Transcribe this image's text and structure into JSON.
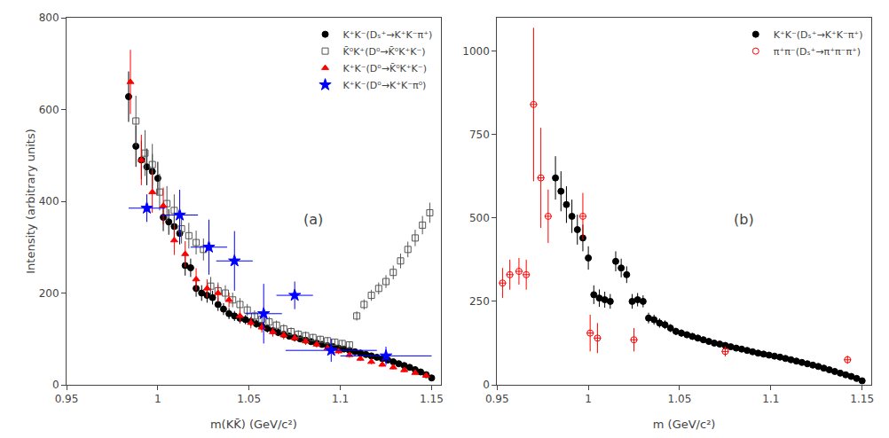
{
  "chart_data": [
    {
      "type": "scatter",
      "title": "(a)",
      "x_label": "m(KK̄) (GeV/c²)",
      "y_label": "Intensity (arbitrary units)",
      "xlim": [
        0.95,
        1.155
      ],
      "xticks": [
        0.95,
        1,
        1.05,
        1.1,
        1.15
      ],
      "ylim": [
        0,
        800
      ],
      "yticks": [
        0,
        200,
        400,
        600,
        800
      ],
      "grid": false,
      "legend": "upper right",
      "series": [
        {
          "name": "K⁺K⁻(Dₛ⁺→K⁺K⁻π⁺)",
          "color": "black",
          "marker": "circle",
          "x": [
            0.984,
            0.988,
            0.991,
            0.994,
            0.997,
            1.0,
            1.003,
            1.006,
            1.009,
            1.012,
            1.015,
            1.018,
            1.021,
            1.024,
            1.027,
            1.03,
            1.033,
            1.036,
            1.039,
            1.042,
            1.045,
            1.048,
            1.051,
            1.054,
            1.057,
            1.06,
            1.063,
            1.066,
            1.069,
            1.072,
            1.075,
            1.078,
            1.081,
            1.084,
            1.087,
            1.09,
            1.093,
            1.096,
            1.099,
            1.102,
            1.105,
            1.108,
            1.111,
            1.114,
            1.117,
            1.12,
            1.123,
            1.126,
            1.129,
            1.132,
            1.135,
            1.138,
            1.141,
            1.144,
            1.147,
            1.15
          ],
          "values": [
            628,
            520,
            490,
            475,
            465,
            450,
            365,
            355,
            345,
            330,
            260,
            255,
            210,
            200,
            195,
            190,
            175,
            165,
            155,
            150,
            145,
            142,
            138,
            133,
            128,
            123,
            118,
            114,
            110,
            106,
            103,
            100,
            97,
            94,
            91,
            88,
            85,
            83,
            80,
            78,
            75,
            72,
            69,
            66,
            63,
            60,
            57,
            54,
            50,
            46,
            42,
            38,
            33,
            28,
            22,
            15
          ],
          "yerr": [
            55,
            45,
            42,
            40,
            38,
            36,
            30,
            28,
            26,
            24,
            22,
            20,
            18,
            17,
            16,
            15,
            14,
            13,
            12,
            11,
            11,
            10,
            10,
            9,
            9,
            9,
            8,
            8,
            8,
            7,
            7,
            7,
            7,
            6,
            6,
            6,
            6,
            5,
            5,
            5,
            5,
            5,
            5,
            4,
            4,
            4,
            4,
            4,
            4,
            3,
            3,
            3,
            3,
            3,
            3,
            2
          ]
        },
        {
          "name": "K̄⁰K⁺(D⁰→K̄⁰K⁺K⁻)",
          "color": "#555555",
          "marker": "square-open",
          "x": [
            0.988,
            0.993,
            0.997,
            1.001,
            1.005,
            1.009,
            1.013,
            1.017,
            1.021,
            1.025,
            1.029,
            1.033,
            1.037,
            1.041,
            1.045,
            1.049,
            1.053,
            1.057,
            1.061,
            1.065,
            1.069,
            1.073,
            1.077,
            1.081,
            1.085,
            1.089,
            1.093,
            1.097,
            1.101,
            1.105,
            1.109,
            1.113,
            1.117,
            1.121,
            1.125,
            1.129,
            1.133,
            1.137,
            1.141,
            1.145,
            1.149
          ],
          "values": [
            575,
            505,
            480,
            420,
            395,
            380,
            340,
            325,
            310,
            295,
            215,
            205,
            200,
            185,
            175,
            163,
            150,
            143,
            137,
            130,
            122,
            116,
            110,
            107,
            103,
            99,
            96,
            93,
            90,
            87,
            150,
            175,
            195,
            210,
            225,
            245,
            270,
            295,
            320,
            348,
            375
          ],
          "yerr": [
            55,
            50,
            45,
            40,
            38,
            35,
            32,
            28,
            26,
            24,
            20,
            18,
            17,
            16,
            14,
            13,
            12,
            11,
            11,
            10,
            10,
            9,
            9,
            9,
            8,
            8,
            8,
            7,
            7,
            7,
            10,
            11,
            12,
            13,
            14,
            15,
            16,
            17,
            18,
            20,
            22
          ]
        },
        {
          "name": "K⁺K⁻(D⁰→K̄⁰K⁺K⁻)",
          "color": "red",
          "marker": "triangle-up",
          "x": [
            0.985,
            0.991,
            0.997,
            1.003,
            1.009,
            1.015,
            1.021,
            1.027,
            1.033,
            1.039,
            1.045,
            1.051,
            1.057,
            1.063,
            1.069,
            1.075,
            1.081,
            1.087,
            1.093,
            1.099,
            1.105,
            1.111,
            1.117,
            1.123,
            1.129,
            1.135,
            1.141,
            1.147
          ],
          "values": [
            660,
            490,
            420,
            390,
            315,
            285,
            230,
            210,
            200,
            185,
            150,
            135,
            125,
            115,
            108,
            102,
            95,
            88,
            80,
            73,
            65,
            57,
            50,
            44,
            38,
            32,
            26,
            20
          ],
          "yerr": [
            70,
            55,
            45,
            40,
            32,
            28,
            24,
            20,
            18,
            16,
            14,
            12,
            11,
            10,
            9,
            8,
            8,
            7,
            7,
            6,
            6,
            5,
            5,
            4,
            4,
            4,
            3,
            3
          ]
        },
        {
          "name": "K⁺K⁻(D⁰→K⁺K⁻π⁰)",
          "color": "blue",
          "marker": "star",
          "x": [
            0.994,
            1.012,
            1.028,
            1.042,
            1.058,
            1.075,
            1.095,
            1.125
          ],
          "values": [
            385,
            370,
            300,
            270,
            155,
            195,
            75,
            63
          ],
          "yerr": [
            30,
            55,
            60,
            65,
            65,
            30,
            25,
            20
          ],
          "xerr": [
            0.01,
            0.01,
            0.01,
            0.01,
            0.01,
            0.01,
            0.025,
            0.025
          ]
        }
      ]
    },
    {
      "type": "scatter",
      "title": "(b)",
      "x_label": "m (GeV/c²)",
      "xlim": [
        0.95,
        1.155
      ],
      "xticks": [
        0.95,
        1,
        1.05,
        1.1,
        1.15
      ],
      "ylim": [
        0,
        1100
      ],
      "yticks": [
        0,
        250,
        500,
        750,
        1000
      ],
      "grid": false,
      "legend": "upper right",
      "series": [
        {
          "name": "K⁺K⁻(Dₛ⁺→K⁺K⁻π⁺)",
          "color": "black",
          "marker": "circle",
          "x": [
            0.982,
            0.985,
            0.988,
            0.991,
            0.994,
            0.997,
            1.0,
            1.003,
            1.006,
            1.009,
            1.012,
            1.015,
            1.018,
            1.021,
            1.024,
            1.027,
            1.03,
            1.033,
            1.036,
            1.039,
            1.042,
            1.045,
            1.048,
            1.051,
            1.054,
            1.057,
            1.06,
            1.063,
            1.066,
            1.069,
            1.072,
            1.075,
            1.078,
            1.081,
            1.084,
            1.087,
            1.09,
            1.093,
            1.096,
            1.099,
            1.102,
            1.105,
            1.108,
            1.111,
            1.114,
            1.117,
            1.12,
            1.123,
            1.126,
            1.129,
            1.132,
            1.135,
            1.138,
            1.141,
            1.144,
            1.147,
            1.15
          ],
          "values": [
            620,
            580,
            540,
            505,
            465,
            440,
            380,
            270,
            260,
            255,
            250,
            370,
            350,
            330,
            250,
            255,
            250,
            200,
            195,
            185,
            180,
            170,
            160,
            155,
            150,
            145,
            140,
            135,
            130,
            125,
            122,
            118,
            114,
            110,
            107,
            103,
            99,
            95,
            92,
            89,
            86,
            83,
            79,
            75,
            71,
            67,
            63,
            59,
            55,
            50,
            45,
            40,
            35,
            30,
            25,
            19,
            12
          ],
          "yerr": [
            65,
            60,
            55,
            50,
            45,
            40,
            35,
            28,
            26,
            24,
            22,
            30,
            28,
            25,
            22,
            20,
            18,
            16,
            15,
            14,
            13,
            12,
            11,
            11,
            10,
            10,
            9,
            9,
            9,
            8,
            8,
            8,
            7,
            7,
            7,
            6,
            6,
            6,
            5,
            5,
            5,
            5,
            5,
            4,
            4,
            4,
            4,
            4,
            3,
            3,
            3,
            3,
            3,
            2,
            2,
            2,
            2
          ]
        },
        {
          "name": "π⁺π⁻(Dₛ⁺→π⁺π⁻π⁺)",
          "color": "red",
          "marker": "circle-open",
          "x": [
            0.953,
            0.957,
            0.962,
            0.966,
            0.97,
            0.974,
            0.978,
            0.997,
            1.001,
            1.005,
            1.025,
            1.075,
            1.142
          ],
          "values": [
            305,
            330,
            340,
            330,
            840,
            620,
            505,
            505,
            155,
            140,
            135,
            100,
            75
          ],
          "yerr": [
            45,
            45,
            40,
            45,
            230,
            150,
            80,
            70,
            55,
            45,
            35,
            15,
            12
          ],
          "xerr": [
            0.002,
            0.002,
            0.002,
            0.002,
            0.002,
            0.002,
            0.002,
            0.002,
            0.002,
            0.002,
            0.002,
            0.002,
            0.002
          ]
        }
      ]
    }
  ]
}
